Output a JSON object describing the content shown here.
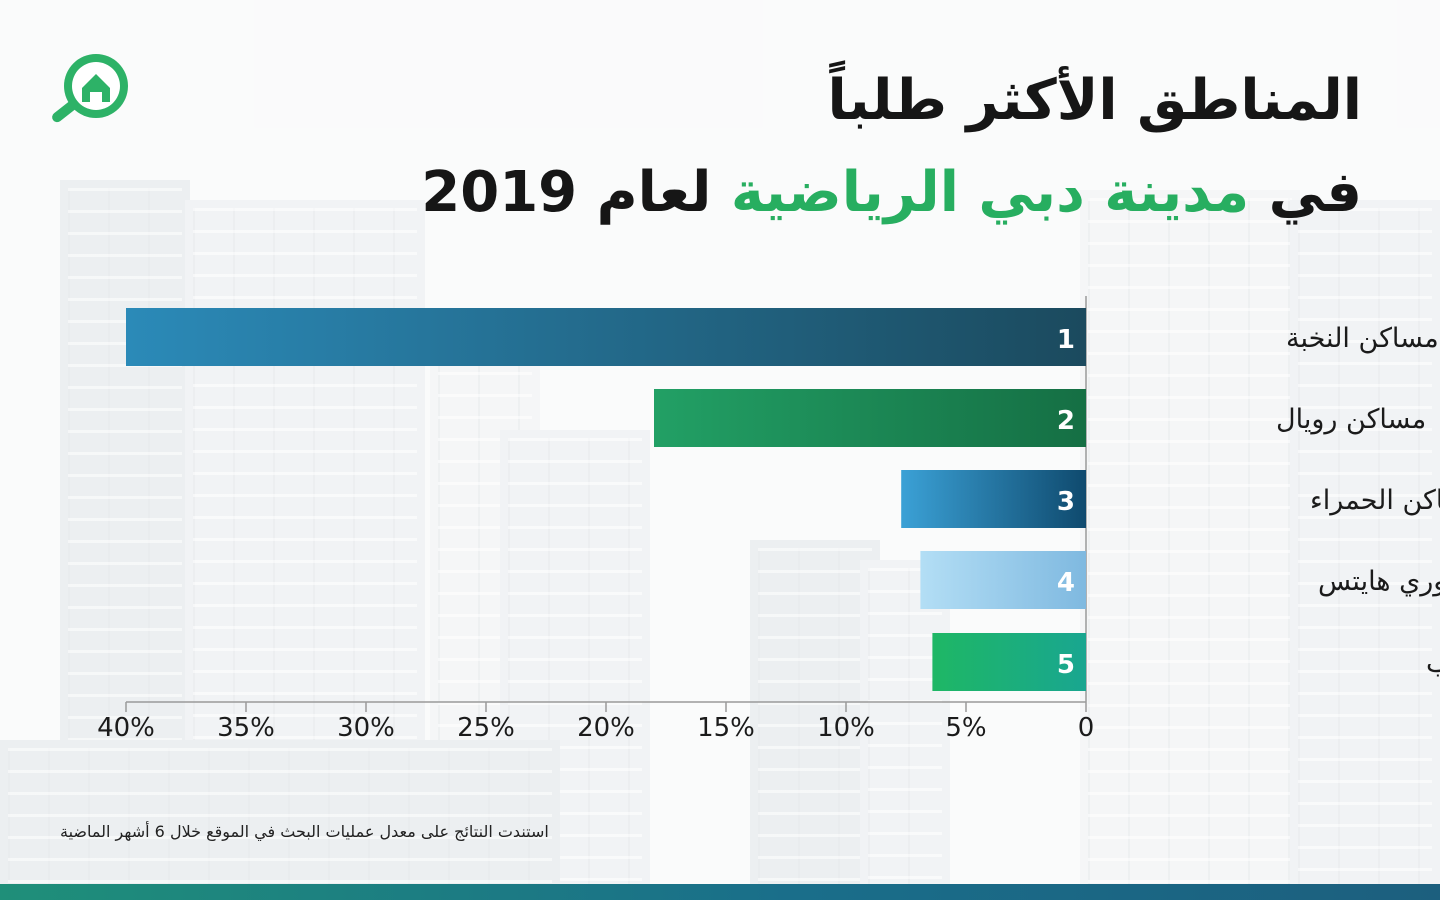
{
  "title": {
    "line1": "المناطق الأكثر طلباً",
    "line2_prefix": "في ",
    "line2_accent": "مدينة دبي الرياضية",
    "line2_suffix": " لعام 2019"
  },
  "footnote": "استندت النتائج على معدل عمليات البحث في الموقع خلال 6 أشهر الماضية",
  "colors": {
    "title": "#161616",
    "accent": "#27ae60",
    "footer_stripe": "#1a6e8a"
  },
  "logo": {
    "icon": "house-magnifier-icon",
    "color": "#2db267"
  },
  "chart_data": {
    "type": "bar",
    "orientation": "horizontal",
    "x_direction": "right-to-left",
    "xlim": [
      0,
      40
    ],
    "x_ticks": [
      "0",
      "5%",
      "10%",
      "15%",
      "20%",
      "25%",
      "30%",
      "35%",
      "40%"
    ],
    "categories": [
      "مساكن النخبة",
      "مساكن رويال",
      "المساكن الحمراء",
      "فيكتوري هايتس",
      "مساكن القناه المائية غرب"
    ],
    "ranks": [
      "1",
      "2",
      "3",
      "4",
      "5"
    ],
    "values": [
      40,
      18,
      7.7,
      6.9,
      6.4
    ],
    "bar_colors": [
      [
        "#2b8ab8",
        "#1b4a5e"
      ],
      [
        "#22a065",
        "#156f44"
      ],
      [
        "#3ba1d6",
        "#0f4a6e"
      ],
      [
        "#b3def5",
        "#7fb9e0"
      ],
      [
        "#1eb765",
        "#19a690"
      ]
    ]
  }
}
